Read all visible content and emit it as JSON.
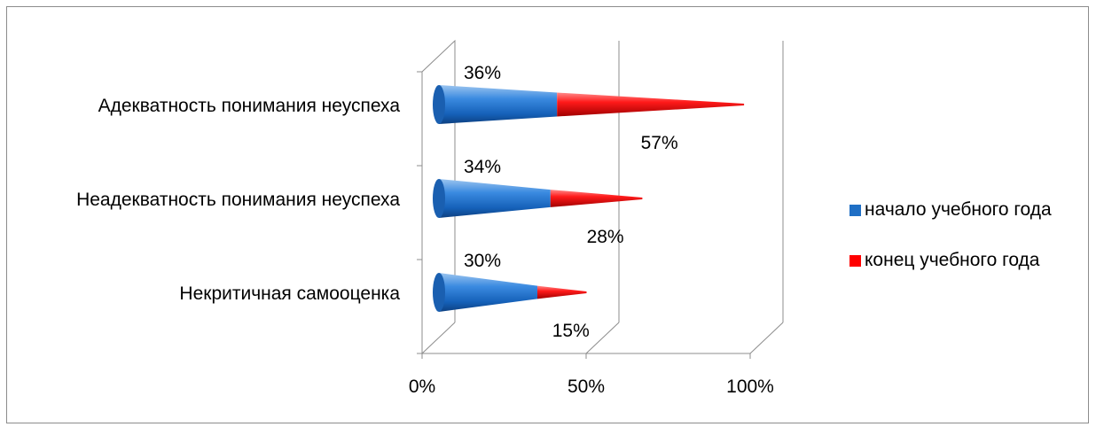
{
  "chart_data": {
    "type": "bar",
    "style": "3d-cone",
    "orientation": "horizontal",
    "stacked": true,
    "categories": [
      "Адекватность понимания неуспеха",
      "Неадекватность понимания неуспеха",
      "Некритичная самооценка"
    ],
    "series": [
      {
        "name": "начало учебного года",
        "values": [
          36,
          34,
          30
        ],
        "labels": [
          "36%",
          "34%",
          "30%"
        ],
        "color": "#1f6fc5"
      },
      {
        "name": "конец учебного года",
        "values": [
          57,
          28,
          15
        ],
        "labels": [
          "57%",
          "28%",
          "15%"
        ],
        "color": "#ff0000"
      }
    ],
    "x_ticks": [
      "0%",
      "50%",
      "100%"
    ],
    "xlim": [
      0,
      100
    ],
    "grid": true,
    "legend_position": "right"
  }
}
